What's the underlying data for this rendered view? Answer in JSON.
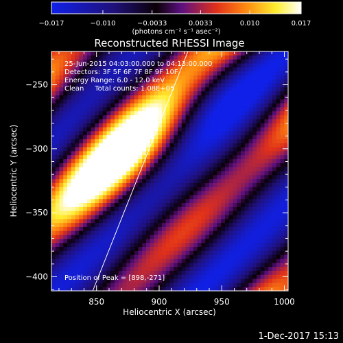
{
  "chart_data": {
    "type": "heatmap",
    "title": "Reconstructed RHESSI Image",
    "xlabel": "Heliocentric X (arcsec)",
    "ylabel": "Heliocentric Y (arcsec)",
    "xlim": [
      814,
      1003
    ],
    "ylim": [
      -411,
      -224
    ],
    "x_ticks": [
      850,
      900,
      950,
      1000
    ],
    "x_tick_labels": [
      "850",
      "900",
      "950",
      "1000"
    ],
    "y_ticks": [
      -250,
      -300,
      -350,
      -400
    ],
    "y_tick_labels": [
      "−250",
      "−300",
      "−350",
      "−400"
    ],
    "colorbar": {
      "range": [
        -0.017,
        0.017
      ],
      "ticks": [
        -0.017,
        -0.01,
        -0.0033,
        0.0033,
        0.01,
        0.017
      ],
      "tick_labels": [
        "−0.017",
        "−0.010",
        "−0.0033",
        "0.0033",
        "0.010",
        "0.017"
      ],
      "unit_label": "(photons cm⁻² s⁻¹ asec⁻²)"
    },
    "annotations": [
      "25-Jun-2015 04:03:00.000 to 04:13:00.000",
      "Detectors: 3F 5F 6F 7F 8F 9F 10F",
      "Energy Range: 6.0 - 12.0 keV",
      "Clean     Total counts: 1.08E+05"
    ],
    "peak_label": "Position of Peak = [898,-271]",
    "peak_position": [
      898,
      -271
    ],
    "limb_line": [
      [
        847,
        -411
      ],
      [
        923,
        -224
      ]
    ],
    "grid": false,
    "legend": "none"
  },
  "footer_date": "1-Dec-2017 15:13"
}
